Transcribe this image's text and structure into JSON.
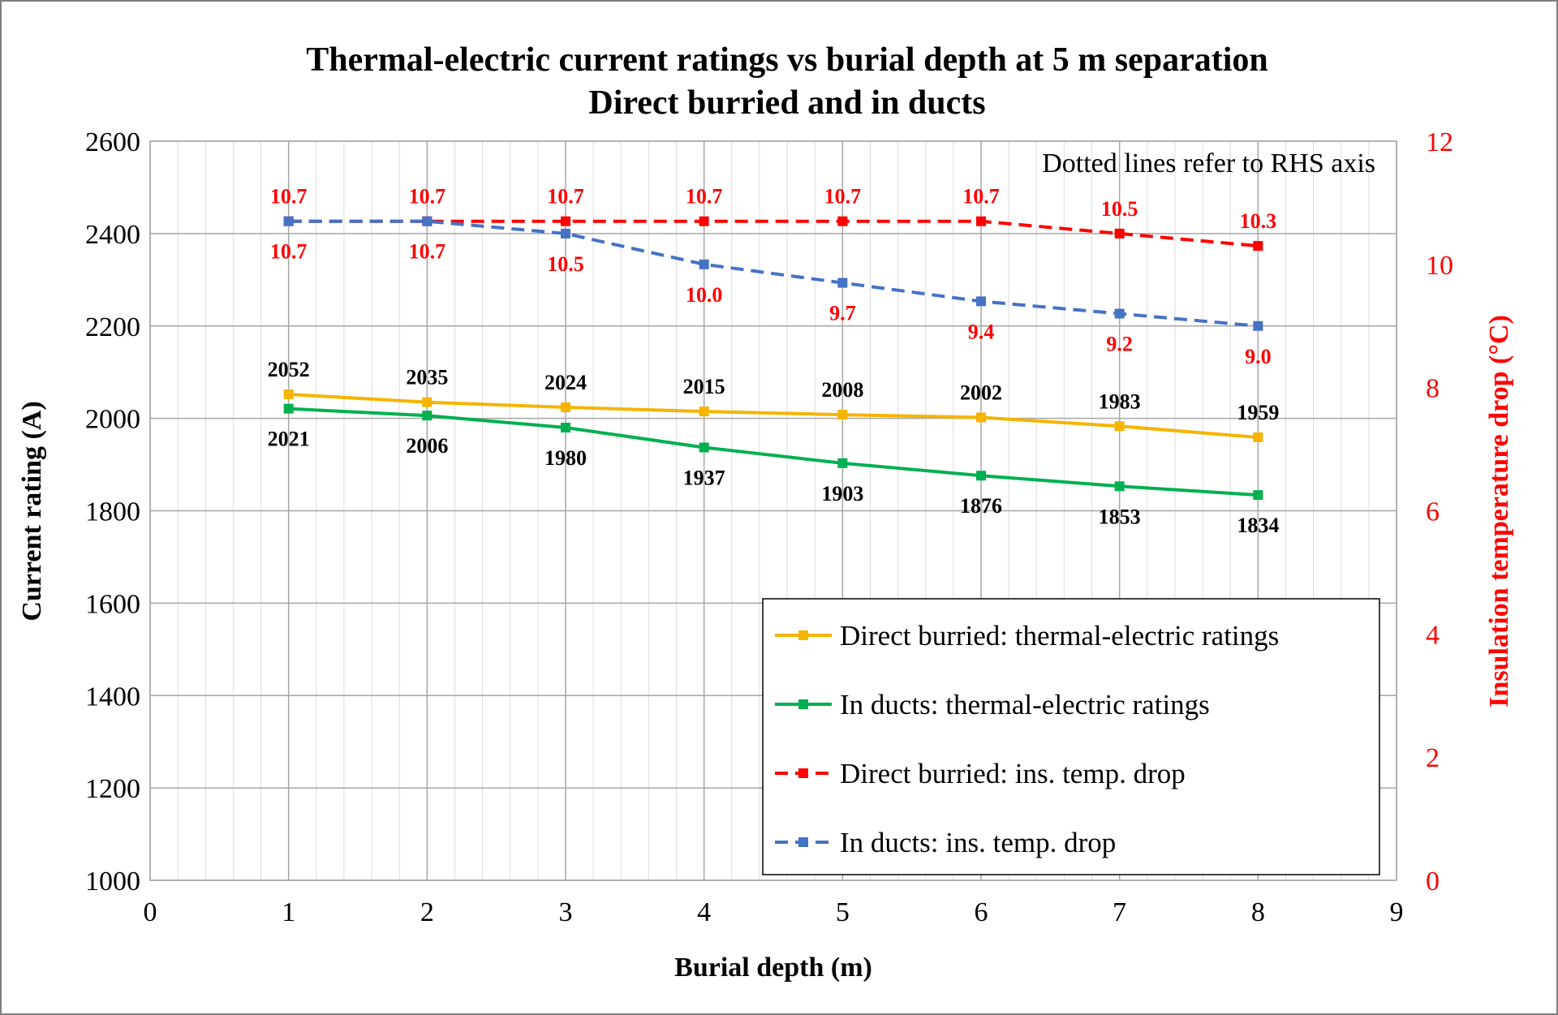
{
  "chart_data": {
    "type": "line",
    "title": "Thermal-electric current ratings vs burial depth at 5 m separation",
    "subtitle": "Direct burried and in ducts",
    "xlabel": "Burial depth (m)",
    "ylabel": "Current rating (A)",
    "y2label": "Insulation temperature drop (°C)",
    "xlim": [
      0,
      9
    ],
    "ylim": [
      1000,
      2600
    ],
    "y2lim": [
      0,
      12
    ],
    "x_ticks": [
      0,
      1,
      2,
      3,
      4,
      5,
      6,
      7,
      8,
      9
    ],
    "y_ticks": [
      1000,
      1200,
      1400,
      1600,
      1800,
      2000,
      2200,
      2400,
      2600
    ],
    "y2_ticks": [
      0,
      2,
      4,
      6,
      8,
      10,
      12
    ],
    "grid": true,
    "annotation": "Dotted lines refer to RHS axis",
    "legend_position": "bottom-right",
    "x": [
      1,
      2,
      3,
      4,
      5,
      6,
      7,
      8
    ],
    "series": [
      {
        "name": "Direct burried: thermal-electric ratings",
        "axis": "left",
        "color": "#f5b400",
        "dash": false,
        "values": [
          2052,
          2035,
          2024,
          2015,
          2008,
          2002,
          1983,
          1959
        ],
        "labels": [
          "2052",
          "2035",
          "2024",
          "2015",
          "2008",
          "2002",
          "1983",
          "1959"
        ],
        "label_position": "above",
        "label_color": "#000000"
      },
      {
        "name": "In ducts: thermal-electric ratings",
        "axis": "left",
        "color": "#00b050",
        "dash": false,
        "values": [
          2021,
          2006,
          1980,
          1937,
          1903,
          1876,
          1853,
          1834
        ],
        "labels": [
          "2021",
          "2006",
          "1980",
          "1937",
          "1903",
          "1876",
          "1853",
          "1834"
        ],
        "label_position": "below",
        "label_color": "#000000"
      },
      {
        "name": "Direct burried: ins. temp. drop",
        "axis": "right",
        "color": "#ff0000",
        "dash": true,
        "values": [
          10.7,
          10.7,
          10.7,
          10.7,
          10.7,
          10.7,
          10.5,
          10.3
        ],
        "labels": [
          "10.7",
          "10.7",
          "10.7",
          "10.7",
          "10.7",
          "10.7",
          "10.5",
          "10.3"
        ],
        "label_position": "above",
        "label_color": "#ff0000"
      },
      {
        "name": "In ducts: ins. temp. drop",
        "axis": "right",
        "color": "#4472c4",
        "dash": true,
        "values": [
          10.7,
          10.7,
          10.5,
          10.0,
          9.7,
          9.4,
          9.2,
          9.0
        ],
        "labels": [
          "10.7",
          "10.7",
          "10.5",
          "10.0",
          "9.7",
          "9.4",
          "9.2",
          "9.0"
        ],
        "label_position": "below",
        "label_color": "#ff0000"
      }
    ]
  }
}
